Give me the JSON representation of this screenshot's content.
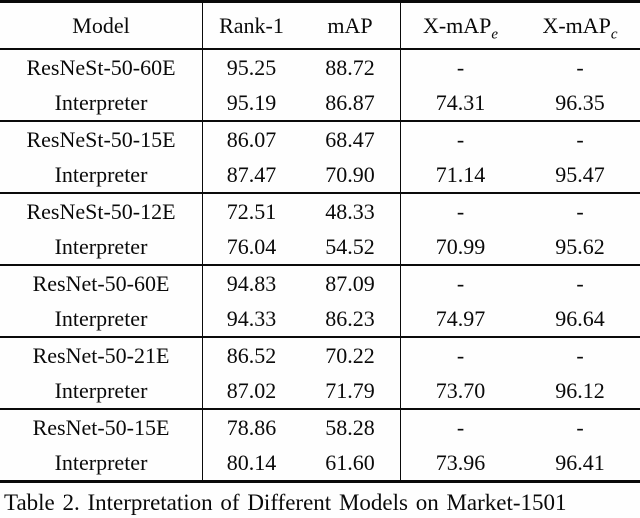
{
  "table": {
    "caption": "Table 2. Interpretation of Different Models on Market-1501",
    "header": {
      "model": "Model",
      "rank1": "Rank-1",
      "map": "mAP",
      "xmape_base": "X-mAP",
      "xmape_sub": "e",
      "xmapc_base": "X-mAP",
      "xmapc_sub": "c"
    },
    "groups": [
      {
        "rows": [
          {
            "model": "ResNeSt-50-60E",
            "rank1": "95.25",
            "map": "88.72",
            "xmape": "-",
            "xmapc": "-"
          },
          {
            "model": "Interpreter",
            "rank1": "95.19",
            "map": "86.87",
            "xmape": "74.31",
            "xmapc": "96.35"
          }
        ]
      },
      {
        "rows": [
          {
            "model": "ResNeSt-50-15E",
            "rank1": "86.07",
            "map": "68.47",
            "xmape": "-",
            "xmapc": "-"
          },
          {
            "model": "Interpreter",
            "rank1": "87.47",
            "map": "70.90",
            "xmape": "71.14",
            "xmapc": "95.47"
          }
        ]
      },
      {
        "rows": [
          {
            "model": "ResNeSt-50-12E",
            "rank1": "72.51",
            "map": "48.33",
            "xmape": "-",
            "xmapc": "-"
          },
          {
            "model": "Interpreter",
            "rank1": "76.04",
            "map": "54.52",
            "xmape": "70.99",
            "xmapc": "95.62"
          }
        ]
      },
      {
        "rows": [
          {
            "model": "ResNet-50-60E",
            "rank1": "94.83",
            "map": "87.09",
            "xmape": "-",
            "xmapc": "-"
          },
          {
            "model": "Interpreter",
            "rank1": "94.33",
            "map": "86.23",
            "xmape": "74.97",
            "xmapc": "96.64"
          }
        ]
      },
      {
        "rows": [
          {
            "model": "ResNet-50-21E",
            "rank1": "86.52",
            "map": "70.22",
            "xmape": "-",
            "xmapc": "-"
          },
          {
            "model": "Interpreter",
            "rank1": "87.02",
            "map": "71.79",
            "xmape": "73.70",
            "xmapc": "96.12"
          }
        ]
      },
      {
        "rows": [
          {
            "model": "ResNet-50-15E",
            "rank1": "78.86",
            "map": "58.28",
            "xmape": "-",
            "xmapc": "-"
          },
          {
            "model": "Interpreter",
            "rank1": "80.14",
            "map": "61.60",
            "xmape": "73.96",
            "xmapc": "96.41"
          }
        ]
      }
    ]
  }
}
